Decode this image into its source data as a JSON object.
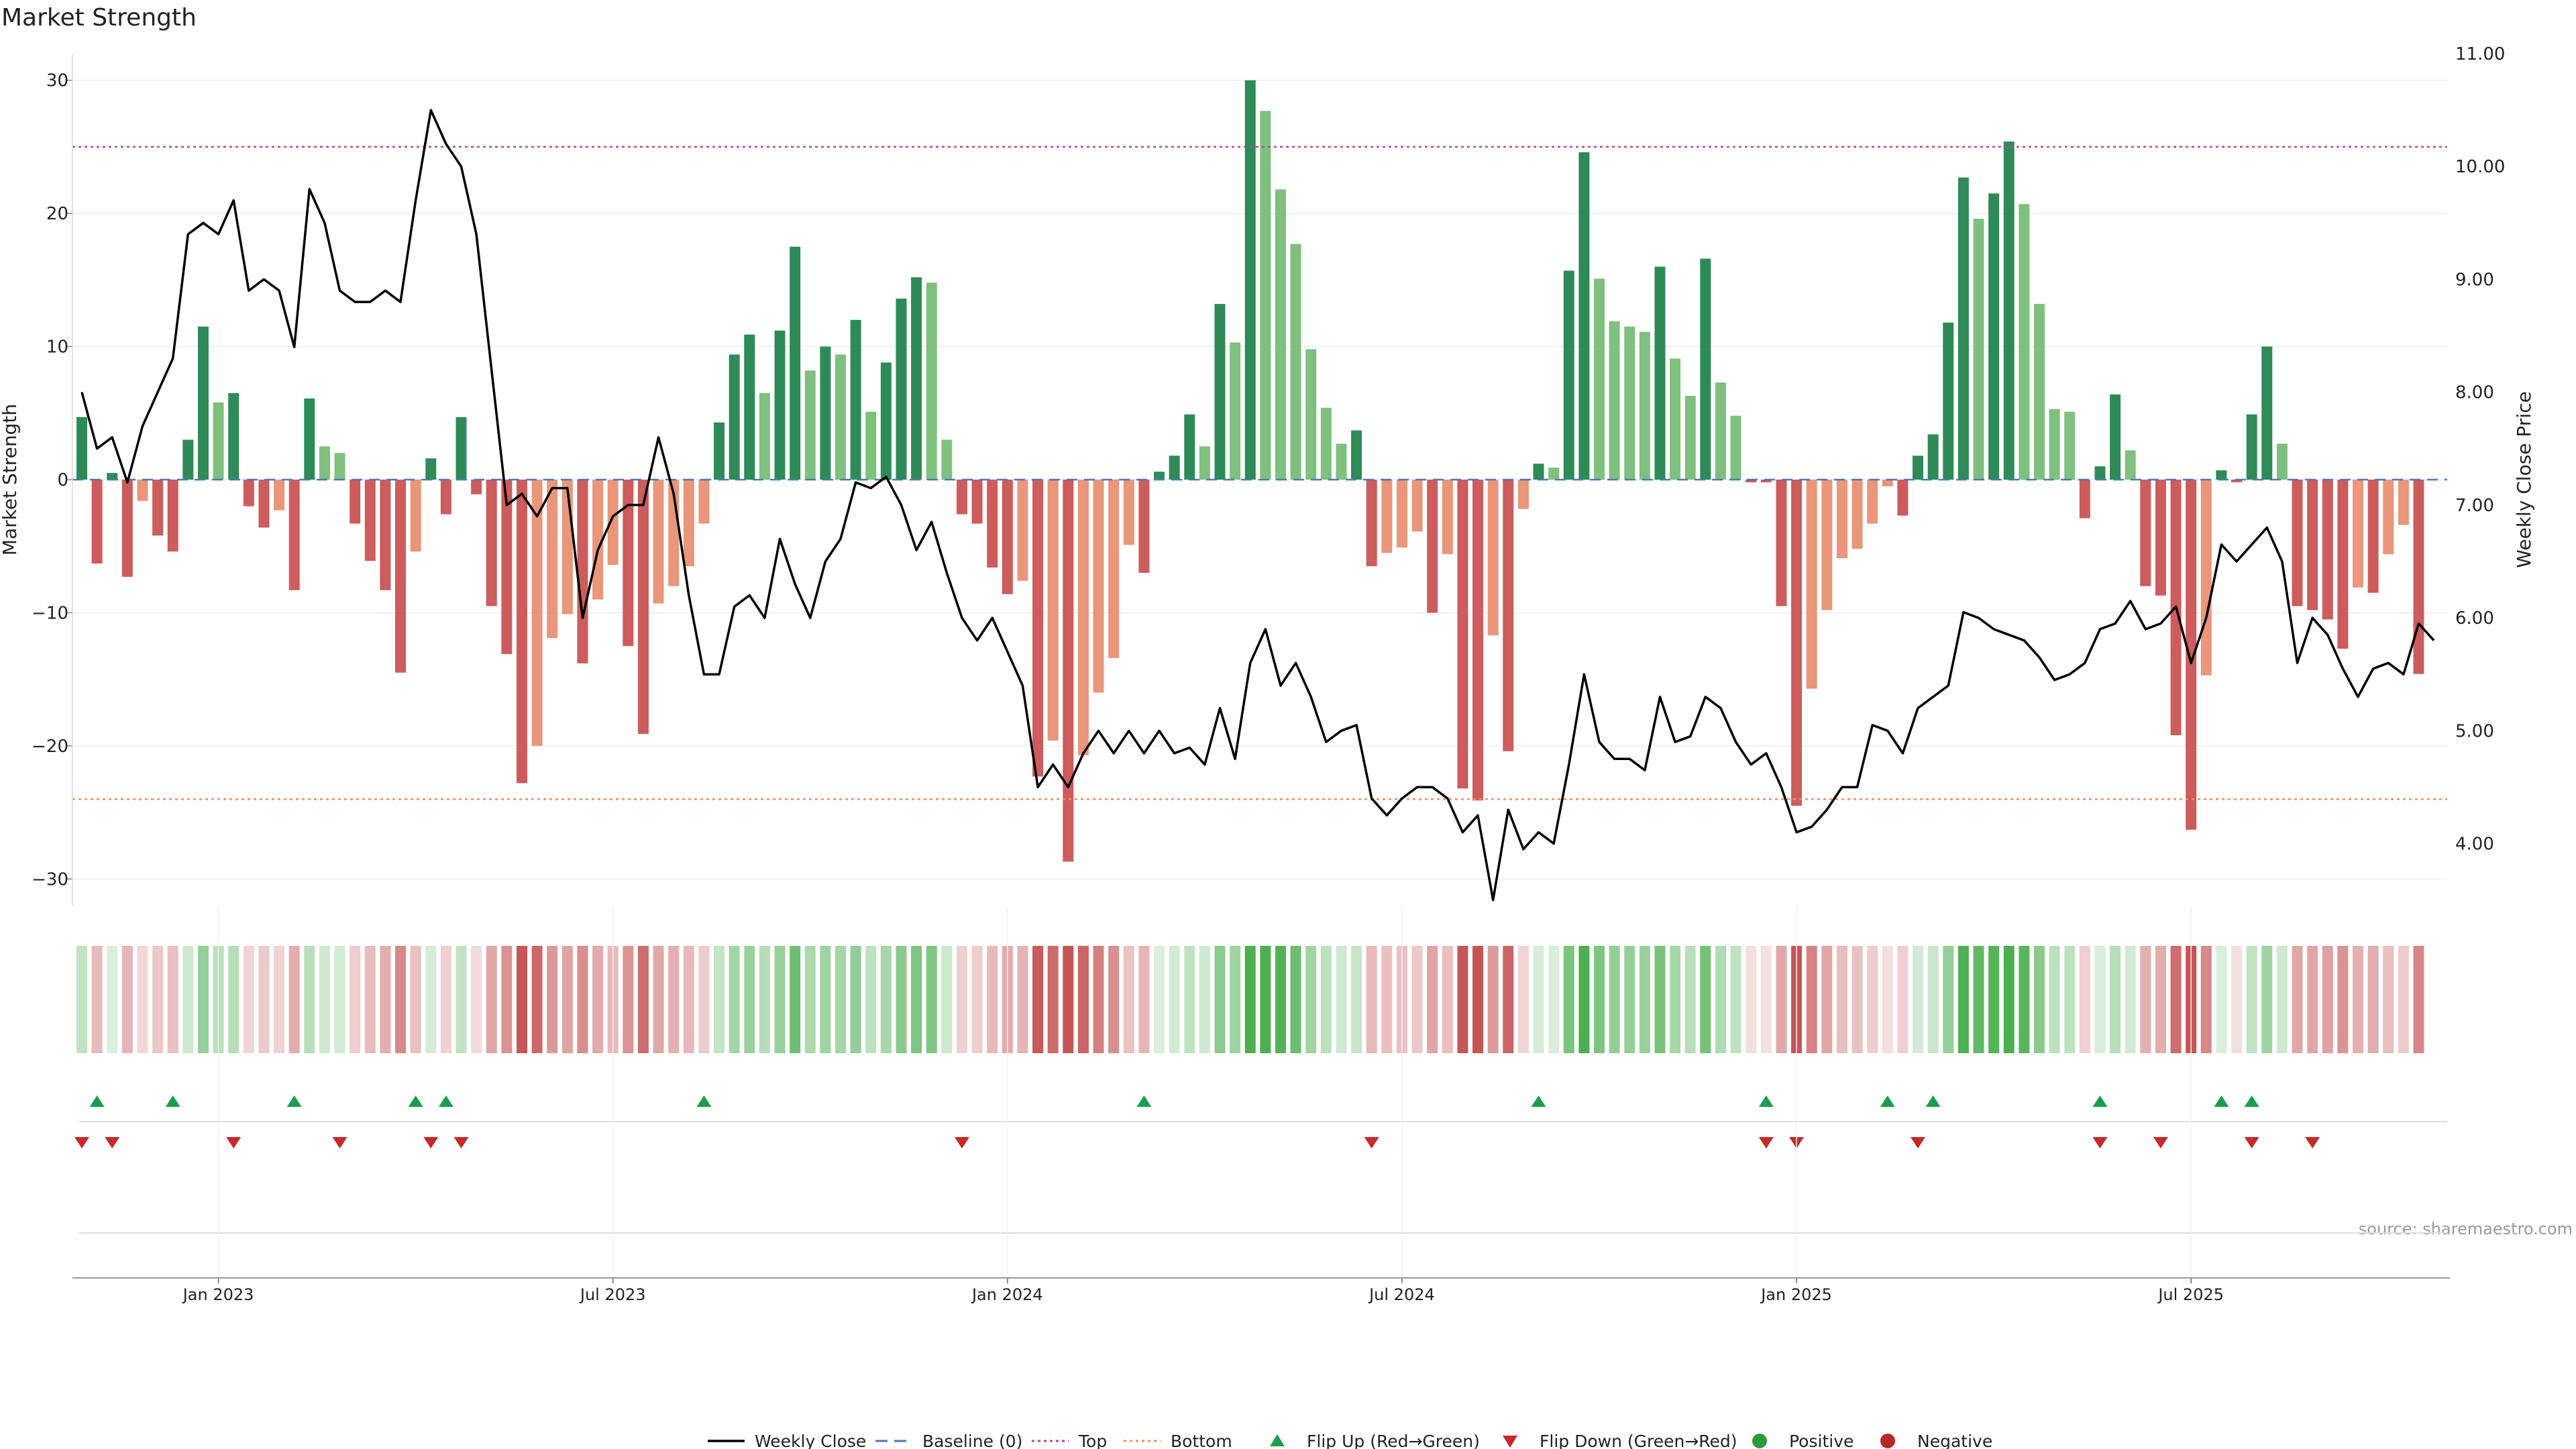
{
  "chart_data": {
    "type": "bar",
    "title": "Market Strength",
    "ylabel_left": "Market Strength",
    "ylabel_right": "Weekly Close Price",
    "source": "source: sharemaestro.com",
    "left_axis": {
      "ylim": [
        -32,
        32
      ],
      "ticks": [
        -30,
        -20,
        -10,
        0,
        10,
        20,
        30
      ],
      "tick_labels": [
        "−30",
        "−20",
        "−10",
        "0",
        "10",
        "20",
        "30"
      ]
    },
    "right_axis": {
      "ylim": [
        3.45,
        11.0
      ],
      "ticks": [
        4.0,
        5.0,
        6.0,
        7.0,
        8.0,
        9.0,
        10.0,
        11.0
      ],
      "tick_labels": [
        "4.00",
        "5.00",
        "6.00",
        "7.00",
        "8.00",
        "9.00",
        "10.00",
        "11.00"
      ]
    },
    "x_axis": {
      "tick_labels": [
        "Jan 2023",
        "Jul 2023",
        "Jan 2024",
        "Jul 2024",
        "Jan 2025",
        "Jul 2025"
      ],
      "tick_weeks": [
        9,
        35,
        61,
        87,
        113,
        139
      ]
    },
    "reference_lines": {
      "top": 25,
      "bottom": -24,
      "baseline": 0
    },
    "strength": [
      4.7,
      -6.3,
      0.5,
      -7.3,
      -1.6,
      -4.2,
      -5.4,
      3.0,
      11.5,
      5.8,
      6.5,
      -2.0,
      -3.6,
      -2.3,
      -8.3,
      6.1,
      2.5,
      2.0,
      -3.3,
      -6.1,
      -8.3,
      -14.5,
      -5.4,
      1.6,
      -2.6,
      4.7,
      -1.1,
      -9.5,
      -13.1,
      -22.8,
      -20.0,
      -11.9,
      -10.1,
      -13.8,
      -9.0,
      -6.4,
      -12.5,
      -19.1,
      -9.3,
      -8.0,
      -6.5,
      -3.3,
      4.3,
      9.4,
      10.9,
      6.5,
      11.2,
      17.5,
      8.2,
      10.0,
      9.4,
      12.0,
      5.1,
      8.8,
      13.6,
      15.2,
      14.8,
      3.0,
      -2.6,
      -3.3,
      -6.6,
      -8.6,
      -7.6,
      -22.3,
      -19.6,
      -28.7,
      -20.7,
      -16.0,
      -13.4,
      -4.9,
      -7.0,
      0.6,
      1.8,
      4.9,
      2.5,
      13.2,
      10.3,
      30.0,
      27.7,
      21.8,
      17.7,
      9.8,
      5.4,
      2.7,
      3.7,
      -6.5,
      -5.5,
      -5.1,
      -3.9,
      -10.0,
      -5.6,
      -23.2,
      -24.1,
      -11.7,
      -20.4,
      -2.2,
      1.2,
      0.9,
      15.7,
      24.6,
      15.1,
      11.9,
      11.5,
      11.1,
      16.0,
      9.1,
      6.3,
      16.6,
      7.3,
      4.8,
      -0.2,
      -0.2,
      -9.5,
      -24.5,
      -15.7,
      -9.8,
      -5.9,
      -5.2,
      -3.3,
      -0.5,
      -2.7,
      1.8,
      3.4,
      11.8,
      22.7,
      19.6,
      21.5,
      25.4,
      20.7,
      13.2,
      5.3,
      5.1,
      -2.9,
      1.0,
      6.4,
      2.2,
      -8.0,
      -8.7,
      -19.2,
      -26.3,
      -14.7,
      0.7,
      -0.2,
      4.9,
      10.0,
      2.7,
      -9.5,
      -9.8,
      -10.5,
      -12.7,
      -8.1,
      -8.5,
      -5.6,
      -3.4,
      -14.6
    ],
    "weekly_close": [
      8.0,
      7.5,
      7.6,
      7.2,
      7.7,
      8.0,
      8.3,
      9.4,
      9.5,
      9.4,
      9.7,
      8.9,
      9.0,
      8.9,
      8.4,
      9.8,
      9.5,
      8.9,
      8.8,
      8.8,
      8.9,
      8.8,
      9.7,
      10.5,
      10.2,
      10.0,
      9.4,
      8.2,
      7.0,
      7.1,
      6.9,
      7.15,
      7.15,
      6.0,
      6.6,
      6.9,
      7.0,
      7.0,
      7.6,
      7.1,
      6.2,
      5.5,
      5.5,
      6.1,
      6.2,
      6.0,
      6.7,
      6.3,
      6.0,
      6.5,
      6.7,
      7.2,
      7.15,
      7.25,
      7.0,
      6.6,
      6.85,
      6.4,
      6.0,
      5.8,
      6.0,
      5.7,
      5.4,
      4.5,
      4.7,
      4.5,
      4.8,
      5.0,
      4.8,
      5.0,
      4.8,
      5.0,
      4.8,
      4.85,
      4.7,
      5.2,
      4.75,
      5.6,
      5.9,
      5.4,
      5.6,
      5.3,
      4.9,
      5.0,
      5.05,
      4.4,
      4.25,
      4.4,
      4.5,
      4.5,
      4.4,
      4.1,
      4.25,
      3.5,
      4.3,
      3.95,
      4.1,
      4.0,
      4.7,
      5.5,
      4.9,
      4.75,
      4.75,
      4.65,
      5.3,
      4.9,
      4.95,
      5.3,
      5.2,
      4.9,
      4.7,
      4.8,
      4.5,
      4.1,
      4.15,
      4.3,
      4.5,
      4.5,
      5.05,
      5.0,
      4.8,
      5.2,
      5.3,
      5.4,
      6.05,
      6.0,
      5.9,
      5.85,
      5.8,
      5.65,
      5.45,
      5.5,
      5.6,
      5.9,
      5.95,
      6.15,
      5.9,
      5.95,
      6.1,
      5.6,
      6.0,
      6.65,
      6.5,
      6.65,
      6.8,
      6.5,
      5.6,
      6.0,
      5.85,
      5.55,
      5.3,
      5.55,
      5.6,
      5.5,
      5.95,
      5.8
    ],
    "flip_up_weeks": [
      1,
      6,
      14,
      22,
      24,
      41,
      70,
      96,
      111,
      119,
      122,
      133,
      141,
      143
    ],
    "flip_down_weeks": [
      0,
      2,
      10,
      17,
      23,
      25,
      58,
      85,
      111,
      113,
      121,
      133,
      137,
      143,
      147
    ],
    "legend": [
      "Weekly Close",
      "Baseline (0)",
      "Top",
      "Bottom",
      "Flip Up (Red→Green)",
      "Flip Down (Green→Red)",
      "Positive",
      "Negative"
    ],
    "colors": {
      "pos_strong": "#2e8b57",
      "pos_light": "#7fc07f",
      "neg_strong": "#cd5c5c",
      "neg_light": "#e9967a",
      "line": "#000000",
      "baseline": "#4a7ab8",
      "top": "#b04a9a",
      "bottom": "#e8925a",
      "flip_up": "#1a9e4a",
      "flip_down": "#c82828",
      "positive_dot": "#2a9a3a",
      "negative_dot": "#b82828"
    }
  }
}
